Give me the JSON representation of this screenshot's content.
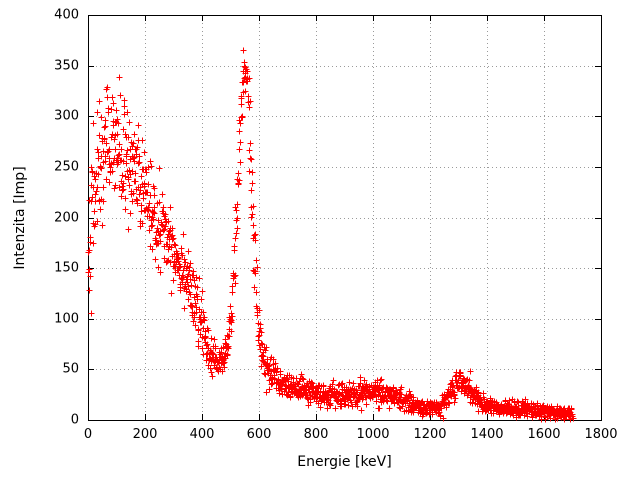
{
  "chart_data": {
    "type": "scatter",
    "title": "",
    "xlabel": "Energie [keV]",
    "ylabel": "Intenzita [Imp]",
    "xlim": [
      0,
      1800
    ],
    "ylim": [
      0,
      400
    ],
    "xticks": [
      0,
      200,
      400,
      600,
      800,
      1000,
      1200,
      1400,
      1600,
      1800
    ],
    "yticks": [
      0,
      50,
      100,
      150,
      200,
      250,
      300,
      350,
      400
    ],
    "grid": true,
    "legend": "none",
    "marker": "plus",
    "marker_color": "#ff0000",
    "n_points": 1700,
    "x_range": [
      0,
      1700
    ],
    "seed": 42,
    "envelope": [
      [
        0,
        170,
        25
      ],
      [
        15,
        215,
        30
      ],
      [
        40,
        255,
        32
      ],
      [
        70,
        275,
        32
      ],
      [
        100,
        272,
        30
      ],
      [
        140,
        250,
        28
      ],
      [
        180,
        235,
        25
      ],
      [
        220,
        210,
        22
      ],
      [
        260,
        190,
        20
      ],
      [
        300,
        168,
        18
      ],
      [
        340,
        148,
        16
      ],
      [
        380,
        110,
        15
      ],
      [
        420,
        70,
        10
      ],
      [
        450,
        57,
        8
      ],
      [
        475,
        60,
        8
      ],
      [
        495,
        85,
        10
      ],
      [
        515,
        160,
        18
      ],
      [
        530,
        260,
        22
      ],
      [
        542,
        335,
        18
      ],
      [
        550,
        350,
        12
      ],
      [
        558,
        330,
        18
      ],
      [
        572,
        240,
        25
      ],
      [
        585,
        150,
        20
      ],
      [
        600,
        90,
        14
      ],
      [
        615,
        60,
        10
      ],
      [
        640,
        45,
        8
      ],
      [
        680,
        35,
        7
      ],
      [
        730,
        30,
        6
      ],
      [
        800,
        26,
        6
      ],
      [
        900,
        24,
        6
      ],
      [
        1000,
        28,
        6
      ],
      [
        1060,
        26,
        6
      ],
      [
        1120,
        18,
        5
      ],
      [
        1180,
        12,
        4
      ],
      [
        1230,
        12,
        4
      ],
      [
        1270,
        25,
        6
      ],
      [
        1305,
        40,
        7
      ],
      [
        1340,
        28,
        6
      ],
      [
        1390,
        16,
        5
      ],
      [
        1450,
        12,
        4
      ],
      [
        1550,
        10,
        4
      ],
      [
        1650,
        8,
        3
      ],
      [
        1700,
        6,
        3
      ]
    ]
  },
  "frame": {
    "background": "#ffffff",
    "border_color": "#000000",
    "grid_color": "#9a9a9a"
  }
}
